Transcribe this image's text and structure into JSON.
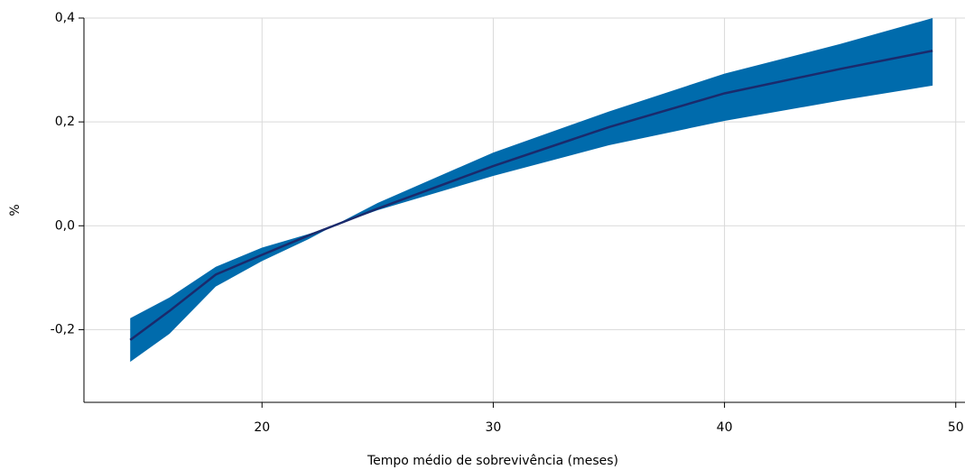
{
  "chart_data": {
    "type": "line_band",
    "x_label": "Tempo médio de sobrevivência (meses)",
    "y_label": "%",
    "x": [
      14.3,
      16,
      18,
      20,
      22,
      23.1,
      25,
      30,
      35,
      40,
      45,
      49
    ],
    "values": [
      -0.22,
      -0.164,
      -0.094,
      -0.056,
      -0.019,
      0,
      0.033,
      0.115,
      0.19,
      0.255,
      0.302,
      0.337
    ],
    "upper": [
      -0.178,
      -0.138,
      -0.079,
      -0.042,
      -0.016,
      0,
      0.044,
      0.141,
      0.22,
      0.293,
      0.35,
      0.4
    ],
    "lower": [
      -0.262,
      -0.208,
      -0.117,
      -0.068,
      -0.026,
      0,
      0.03,
      0.096,
      0.155,
      0.202,
      0.241,
      0.27
    ],
    "color": "#1a2a6c",
    "band_color": "#006bac",
    "xlim": [
      12.3,
      50.4
    ],
    "ylim": [
      -0.34,
      0.4
    ],
    "xticks": [
      20,
      30,
      40,
      50
    ],
    "yticks": [
      {
        "value": -0.2,
        "label": "-0,2"
      },
      {
        "value": 0,
        "label": "0,0"
      },
      {
        "value": 0.2,
        "label": "0,2"
      },
      {
        "value": 0.4,
        "label": "0,4"
      }
    ],
    "grid": true
  }
}
